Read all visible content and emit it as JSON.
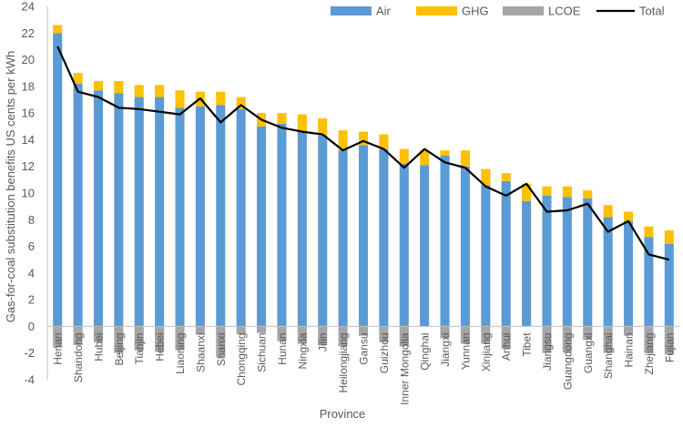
{
  "chart_data": {
    "type": "bar",
    "stacked": true,
    "xlabel": "Province",
    "ylabel": "Gas-for-coal substitution benefits US cents per kWh",
    "ylim": [
      -4,
      24
    ],
    "yticks": [
      -4,
      -2,
      0,
      2,
      4,
      6,
      8,
      10,
      12,
      14,
      16,
      18,
      20,
      22,
      24
    ],
    "legend_position": "top-right",
    "categories": [
      "Henan",
      "Shandong",
      "Hubei",
      "Beijing",
      "Tianjin",
      "Hebei",
      "Liaoning",
      "Shaanxi",
      "Shanxi",
      "Chongqing",
      "Sichuan",
      "Hunan",
      "Ningxia",
      "Jilin",
      "Heilongjiang",
      "Gansu",
      "Guizhou",
      "Inner Mongolia",
      "Qinghai",
      "Jiangxi",
      "Yunnan",
      "Xinjiang",
      "Anhui",
      "Tibet",
      "Jiangsu",
      "Guangdong",
      "Guangxi",
      "Shanghai",
      "Hainan",
      "Zhejiang",
      "Fujian"
    ],
    "series": [
      {
        "name": "Air",
        "kind": "bar",
        "color": "#5B9BD5",
        "values": [
          22.0,
          18.2,
          17.7,
          17.5,
          17.2,
          17.2,
          16.4,
          16.5,
          16.6,
          16.3,
          15.0,
          15.2,
          14.6,
          14.3,
          13.2,
          13.6,
          13.3,
          12.2,
          12.1,
          12.8,
          12.0,
          10.6,
          10.9,
          9.4,
          9.8,
          9.7,
          9.6,
          8.2,
          7.9,
          6.7,
          6.2
        ]
      },
      {
        "name": "GHG",
        "kind": "bar",
        "color": "#FFC000",
        "values": [
          0.6,
          0.8,
          0.7,
          0.9,
          0.9,
          0.9,
          1.3,
          1.1,
          1.0,
          0.9,
          1.0,
          0.8,
          1.3,
          1.3,
          1.5,
          1.0,
          1.1,
          1.1,
          1.1,
          0.4,
          1.2,
          1.2,
          0.6,
          1.3,
          0.7,
          0.8,
          0.6,
          0.9,
          0.7,
          0.8,
          1.0
        ]
      },
      {
        "name": "LCOE",
        "kind": "bar",
        "color": "#A5A5A5",
        "values": [
          -1.6,
          -1.4,
          -1.2,
          -2.0,
          -1.8,
          -1.9,
          -1.8,
          -0.6,
          -2.3,
          -0.6,
          -0.5,
          -1.1,
          -1.3,
          -1.4,
          -1.5,
          -0.7,
          -1.2,
          -1.5,
          0,
          -0.9,
          -1.3,
          -1.3,
          -1.7,
          0,
          -2.0,
          -1.9,
          -1.0,
          -2.0,
          -0.7,
          -2.0,
          -2.1
        ]
      },
      {
        "name": "Total",
        "kind": "line",
        "color": "#000000",
        "values": [
          21.0,
          17.6,
          17.2,
          16.4,
          16.3,
          16.1,
          15.9,
          17.1,
          15.3,
          16.6,
          15.5,
          14.9,
          14.6,
          14.4,
          13.2,
          13.9,
          13.3,
          11.9,
          13.3,
          12.3,
          11.9,
          10.5,
          9.8,
          10.7,
          8.6,
          8.7,
          9.2,
          7.1,
          7.9,
          5.4,
          5.0
        ]
      }
    ]
  }
}
